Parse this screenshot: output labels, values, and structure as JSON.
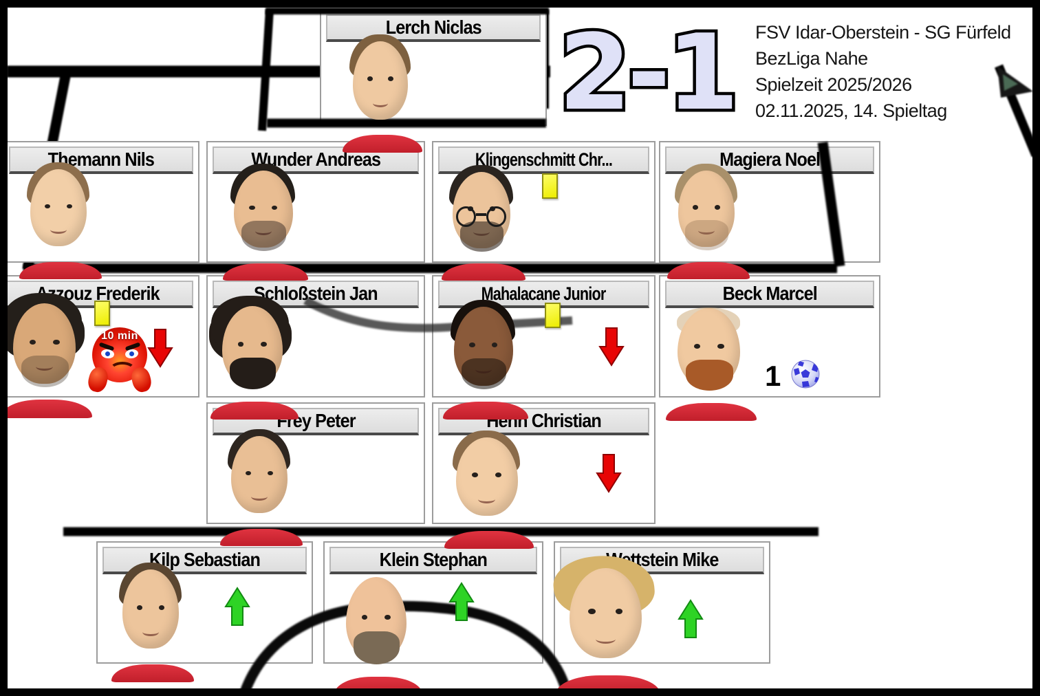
{
  "scoreboard": {
    "score": "2-1"
  },
  "match_info": {
    "fixture": "FSV Idar-Oberstein - SG Fürfeld",
    "league": "BezLiga Nahe",
    "season": "Spielzeit 2025/2026",
    "matchday": "02.11.2025, 14. Spieltag"
  },
  "icons": {
    "yellow_card": "yellow-card",
    "sub_off": "red-down-arrow",
    "sub_on": "green-up-arrow",
    "goal": "blue-football",
    "time_penalty": "angry-emoji-thumbs-down"
  },
  "colors": {
    "score_fill": "#dfe1f7",
    "score_outline": "#000000",
    "yellow_card": "#eded00",
    "sub_off_arrow": "#e80505",
    "sub_on_arrow": "#2ed325",
    "ball_blue": "#2b2bd6",
    "pitch_line": "#000000",
    "card_border": "#9c9c9c",
    "header_bg": "#e4e4e4",
    "shirt_red": "#c11f2b"
  },
  "players": [
    {
      "name": "Lerch Niclas",
      "line": "goalkeeper",
      "badges": {},
      "avatar": {
        "skin": "#efc9a1",
        "hair": "#7d603f",
        "style": "short",
        "beard": null,
        "glasses": false
      }
    },
    {
      "name": "Themann Nils",
      "line": "row-2",
      "badges": {},
      "avatar": {
        "skin": "#f2cfa8",
        "hair": "#8d6e4c",
        "style": "short",
        "beard": null,
        "glasses": false
      }
    },
    {
      "name": "Wunder Andreas",
      "line": "row-2",
      "badges": {},
      "avatar": {
        "skin": "#e9bd92",
        "hair": "#241f1a",
        "style": "short",
        "beard": "#28201d73",
        "glasses": false
      }
    },
    {
      "name": "Klingenschmitt Chr...",
      "line": "row-2",
      "badges": {
        "yellow_card": true
      },
      "avatar": {
        "skin": "#ecc49b",
        "hair": "#2a241f",
        "style": "short",
        "beard": "#33281f99",
        "glasses": true
      }
    },
    {
      "name": "Magiera Noel",
      "line": "row-2",
      "badges": {},
      "avatar": {
        "skin": "#eec69d",
        "hair": "#a9906a",
        "style": "short",
        "beard": "#8a6a4a55",
        "glasses": false
      }
    },
    {
      "name": "Azzouz Frederik",
      "line": "row-3",
      "badges": {
        "yellow_card": true,
        "time_penalty": "10 min",
        "subbed_off": true
      },
      "avatar": {
        "skin": "#d9a878",
        "hair": "#241f1a",
        "style": "curly",
        "beard": "#3a2d2255",
        "glasses": false
      }
    },
    {
      "name": "Schloßstein Jan",
      "line": "row-3",
      "badges": {},
      "avatar": {
        "skin": "#e6b98d",
        "hair": "#241d18",
        "style": "curly",
        "beard": "#241d18",
        "glasses": false
      }
    },
    {
      "name": "Mahalacane Junior",
      "line": "row-3",
      "badges": {
        "yellow_card": true,
        "subbed_off": true
      },
      "avatar": {
        "skin": "#8a5a3a",
        "hair": "#17100c",
        "style": "short",
        "beard": "#17100c88",
        "glasses": false
      }
    },
    {
      "name": "Beck Marcel",
      "line": "row-3",
      "badges": {
        "goals": "1"
      },
      "avatar": {
        "skin": "#f0c9a0",
        "hair": "#c9a671",
        "style": "balding",
        "beard": "#a85a28",
        "glasses": false
      }
    },
    {
      "name": "Frey Peter",
      "line": "row-4",
      "badges": {},
      "avatar": {
        "skin": "#e9bf95",
        "hair": "#2e2620",
        "style": "short",
        "beard": null,
        "glasses": false
      }
    },
    {
      "name": "Henn Christian",
      "line": "row-4",
      "badges": {
        "subbed_off": true
      },
      "avatar": {
        "skin": "#f2cda5",
        "hair": "#8a6b4a",
        "style": "short",
        "beard": null,
        "glasses": false
      }
    },
    {
      "name": "Kilp Sebastian",
      "line": "bench",
      "badges": {
        "subbed_on": true
      },
      "avatar": {
        "skin": "#edc59c",
        "hair": "#5a4631",
        "style": "short",
        "beard": null,
        "glasses": false
      }
    },
    {
      "name": "Klein Stephan",
      "line": "bench",
      "badges": {
        "subbed_on": true
      },
      "avatar": {
        "skin": "#efc29a",
        "hair": "#6b5b48",
        "style": "bald",
        "beard": "#7a6a55",
        "glasses": false
      }
    },
    {
      "name": "Wettstein Mike",
      "line": "bench",
      "badges": {
        "subbed_on": true
      },
      "avatar": {
        "skin": "#f0cba3",
        "hair": "#d6b36a",
        "style": "messy",
        "beard": null,
        "glasses": false
      }
    }
  ]
}
